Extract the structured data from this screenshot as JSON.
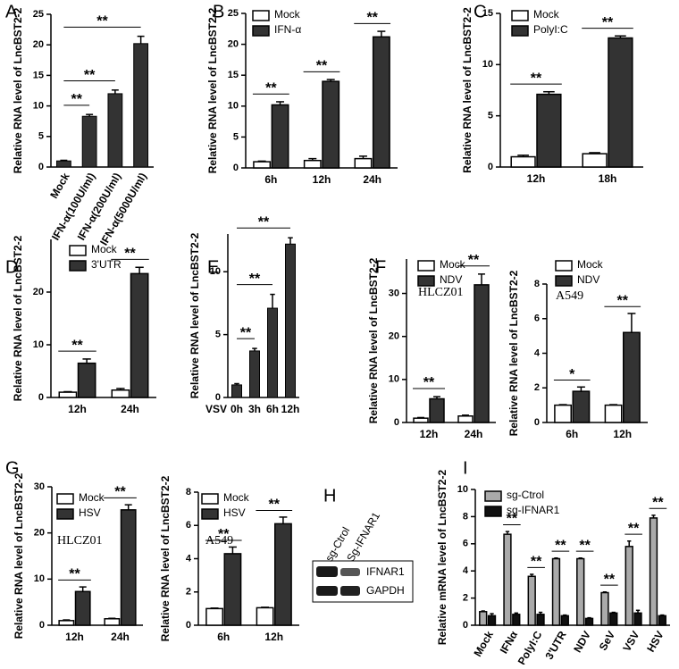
{
  "chart_data": [
    {
      "type": "bar",
      "label": "A",
      "ylabel": "Relative RNA level of LncBST2-2",
      "categories": [
        "Mock",
        "IFN-α(100U/ml)",
        "IFN-α(200U/ml)",
        "IFN-α(5000U/ml)"
      ],
      "values": [
        1,
        8.3,
        12,
        20.2
      ],
      "errors": [
        0.1,
        0.3,
        0.6,
        1.2
      ],
      "color": "#333333",
      "ylim": [
        0,
        25
      ],
      "yticks": [
        0,
        5,
        10,
        15,
        20,
        25
      ],
      "annotations": [
        null,
        "**",
        "**",
        "**"
      ],
      "rotated_labels": true
    },
    {
      "type": "grouped-bar",
      "label": "B",
      "ylabel": "Relative RNA level of LncBST2-2",
      "categories": [
        "6h",
        "12h",
        "24h"
      ],
      "series": [
        {
          "name": "Mock",
          "color": "#ffffff",
          "values": [
            1,
            1.2,
            1.5
          ],
          "errors": [
            0.1,
            0.3,
            0.4
          ]
        },
        {
          "name": "IFN-α",
          "color": "#333333",
          "values": [
            10.2,
            14,
            21.2
          ],
          "errors": [
            0.5,
            0.3,
            0.9
          ]
        }
      ],
      "ylim": [
        0,
        25
      ],
      "yticks": [
        0,
        5,
        10,
        15,
        20,
        25
      ],
      "annotations": [
        "**",
        "**",
        "**"
      ]
    },
    {
      "type": "grouped-bar",
      "label": "C",
      "ylabel": "Relative RNA level of LncBST2-2",
      "categories": [
        "12h",
        "18h"
      ],
      "series": [
        {
          "name": "Mock",
          "color": "#ffffff",
          "values": [
            1,
            1.3
          ],
          "errors": [
            0.15,
            0.1
          ]
        },
        {
          "name": "PolyI:C",
          "color": "#333333",
          "values": [
            7.1,
            12.6
          ],
          "errors": [
            0.25,
            0.2
          ]
        }
      ],
      "ylim": [
        0,
        15
      ],
      "yticks": [
        0,
        5,
        10,
        15
      ],
      "annotations": [
        "**",
        "**"
      ]
    },
    {
      "type": "grouped-bar",
      "label": "D",
      "ylabel": "Relative RNA level of LncBST2-2",
      "categories": [
        "12h",
        "24h"
      ],
      "series": [
        {
          "name": "Mock",
          "color": "#ffffff",
          "values": [
            1,
            1.4
          ],
          "errors": [
            0.1,
            0.3
          ]
        },
        {
          "name": "3'UTR",
          "color": "#333333",
          "values": [
            6.5,
            23.5
          ],
          "errors": [
            0.8,
            1.2
          ]
        }
      ],
      "ylim": [
        0,
        30
      ],
      "yticks": [
        0,
        10,
        20
      ],
      "annotations": [
        "**",
        "**"
      ]
    },
    {
      "type": "bar",
      "label": "E",
      "ylabel": "Relative RNA level of LncBST2-2",
      "xlabel": "VSV",
      "categories": [
        "0h",
        "3h",
        "6h",
        "12h"
      ],
      "values": [
        1,
        3.7,
        7.1,
        12.2
      ],
      "errors": [
        0.1,
        0.2,
        1.1,
        0.5
      ],
      "color": "#333333",
      "ylim": [
        0,
        13
      ],
      "yticks": [
        0,
        5,
        10
      ],
      "annotations": [
        null,
        "**",
        "**",
        "**"
      ]
    },
    {
      "type": "grouped-bar",
      "label": "F",
      "note": "HLCZ01",
      "ylabel": "Relative RNA level of LncBST2-2",
      "categories": [
        "12h",
        "24h"
      ],
      "series": [
        {
          "name": "Mock",
          "color": "#ffffff",
          "values": [
            1,
            1.5
          ],
          "errors": [
            0.15,
            0.2
          ]
        },
        {
          "name": "NDV",
          "color": "#333333",
          "values": [
            5.5,
            32
          ],
          "errors": [
            0.5,
            2.5
          ]
        }
      ],
      "ylim": [
        0,
        38
      ],
      "yticks": [
        0,
        10,
        20,
        30
      ],
      "annotations": [
        "**",
        "**"
      ]
    },
    {
      "type": "grouped-bar",
      "note": "A549",
      "ylabel": "Relative RNA level of LncBST2-2",
      "categories": [
        "6h",
        "12h"
      ],
      "series": [
        {
          "name": "Mock",
          "color": "#ffffff",
          "values": [
            1,
            1
          ],
          "errors": [
            0.03,
            0.03
          ]
        },
        {
          "name": "NDV",
          "color": "#333333",
          "values": [
            1.8,
            5.2
          ],
          "errors": [
            0.25,
            1.1
          ]
        }
      ],
      "ylim": [
        0,
        8
      ],
      "yticks": [
        0,
        2,
        4,
        6,
        8
      ],
      "annotations": [
        "*",
        "**"
      ]
    },
    {
      "type": "grouped-bar",
      "label": "G",
      "note": "HLCZ01",
      "ylabel": "Relative RNA level of LncBST2-2",
      "categories": [
        "12h",
        "24h"
      ],
      "series": [
        {
          "name": "Mock",
          "color": "#ffffff",
          "values": [
            1,
            1.4
          ],
          "errors": [
            0.15,
            0.1
          ]
        },
        {
          "name": "HSV",
          "color": "#333333",
          "values": [
            7.3,
            25
          ],
          "errors": [
            1,
            1.1
          ]
        }
      ],
      "ylim": [
        0,
        30
      ],
      "yticks": [
        0,
        10,
        20,
        30
      ],
      "annotations": [
        "**",
        "**"
      ]
    },
    {
      "type": "grouped-bar",
      "note": "A549",
      "ylabel": "Relative RNA level of LncBST2-2",
      "categories": [
        "6h",
        "12h"
      ],
      "series": [
        {
          "name": "Mock",
          "color": "#ffffff",
          "values": [
            1,
            1.05
          ],
          "errors": [
            0.03,
            0.03
          ]
        },
        {
          "name": "HSV",
          "color": "#333333",
          "values": [
            4.3,
            6.1
          ],
          "errors": [
            0.4,
            0.4
          ]
        }
      ],
      "ylim": [
        0,
        8
      ],
      "yticks": [
        0,
        2,
        4,
        6,
        8
      ],
      "annotations": [
        "**",
        "**"
      ]
    },
    {
      "type": "grouped-bar",
      "label": "I",
      "ylabel": "Relative mRNA level of  LncBST2-2",
      "categories": [
        "Mock",
        "IFNα",
        "PolyI:C",
        "3'UTR",
        "NDV",
        "SeV",
        "VSV",
        "HSV"
      ],
      "series": [
        {
          "name": "sg-Ctrol",
          "color": "#aaaaaa",
          "values": [
            1,
            6.7,
            3.6,
            4.9,
            4.9,
            2.4,
            5.8,
            7.9
          ],
          "errors": [
            0.05,
            0.2,
            0.15,
            0.05,
            0.05,
            0.05,
            0.4,
            0.2
          ]
        },
        {
          "name": "sg-IFNAR1",
          "color": "#111111",
          "values": [
            0.7,
            0.8,
            0.8,
            0.7,
            0.5,
            0.9,
            0.9,
            0.7
          ],
          "errors": [
            0.15,
            0.1,
            0.15,
            0.05,
            0.05,
            0.05,
            0.2,
            0.05
          ]
        }
      ],
      "ylim": [
        0,
        10
      ],
      "yticks": [
        0,
        2,
        4,
        6,
        8,
        10
      ],
      "annotations": [
        null,
        "**",
        "**",
        "**",
        "**",
        "**",
        "**",
        "**"
      ],
      "rotated_labels": true
    }
  ],
  "blot": {
    "label": "H",
    "lanes": [
      "sg-Ctrol",
      "Sg-IFNAR1"
    ],
    "rows": [
      "IFNAR1",
      "GAPDH"
    ]
  }
}
